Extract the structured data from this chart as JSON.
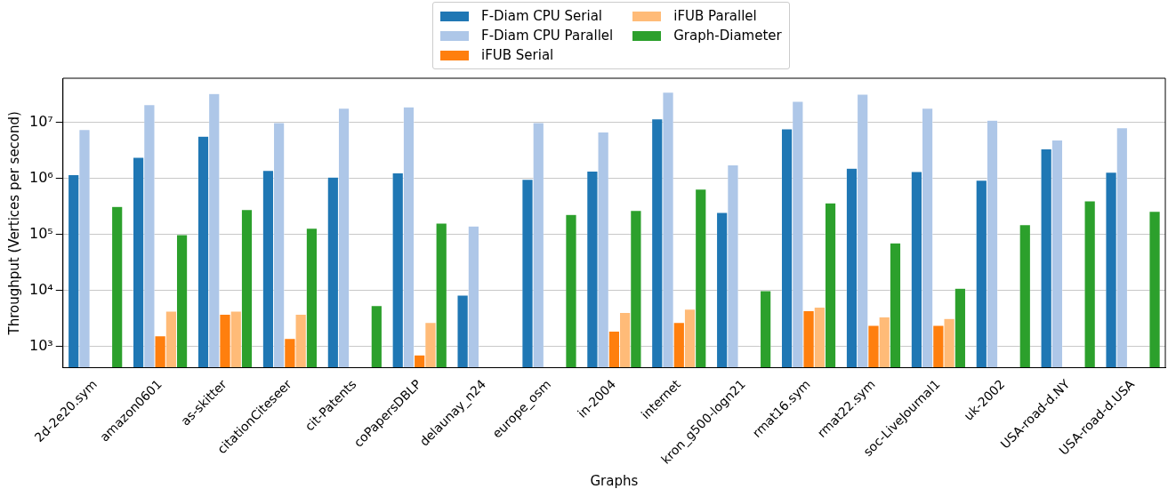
{
  "chart_data": {
    "type": "bar",
    "xlabel": "Graphs",
    "ylabel": "Throughput (Vertices per second)",
    "categories": [
      "2d-2e20.sym",
      "amazon0601",
      "as-skitter",
      "citationCiteseer",
      "cit-Patents",
      "coPapersDBLP",
      "delaunay_n24",
      "europe_osm",
      "in-2004",
      "internet",
      "kron_g500-logn21",
      "rmat16.sym",
      "rmat22.sym",
      "soc-LiveJournal1",
      "uk-2002",
      "USA-road-d.NY",
      "USA-road-d.USA"
    ],
    "series": [
      {
        "name": "F-Diam CPU Serial",
        "color": "#1f77b4",
        "values": [
          1180000,
          2400000,
          5700000,
          1400000,
          1060000,
          1270000,
          8300,
          970000,
          1360000,
          11700000,
          250000,
          7700000,
          1530000,
          1340000,
          940000,
          3400000,
          1300000
        ]
      },
      {
        "name": "F-Diam CPU Parallel",
        "color": "#aec7e8",
        "values": [
          7500000,
          21000000,
          33000000,
          10000000,
          18000000,
          19000000,
          142000,
          10000000,
          6800000,
          35000000,
          1760000,
          24000000,
          32000000,
          18000000,
          11000000,
          4900000,
          8100000
        ]
      },
      {
        "name": "iFUB Serial",
        "color": "#ff7f0e",
        "values": [
          null,
          1560,
          3800,
          1400,
          null,
          710,
          null,
          null,
          1900,
          2700,
          null,
          4400,
          2400,
          2400,
          null,
          null,
          null
        ]
      },
      {
        "name": "iFUB Parallel",
        "color": "#ffbb78",
        "values": [
          null,
          4300,
          4300,
          3800,
          null,
          2700,
          null,
          null,
          4100,
          4700,
          null,
          5100,
          3400,
          3200,
          null,
          null,
          null
        ]
      },
      {
        "name": "Graph-Diameter",
        "color": "#2ca02c",
        "values": [
          320000,
          100000,
          280000,
          130000,
          5400,
          160000,
          null,
          230000,
          270000,
          650000,
          10000,
          370000,
          71000,
          11000,
          150000,
          400000,
          260000
        ]
      }
    ],
    "log": true,
    "ylim": [
      423,
      62000000
    ],
    "yticks": [
      {
        "value": 1000,
        "label": "10³"
      },
      {
        "value": 10000,
        "label": "10⁴"
      },
      {
        "value": 100000,
        "label": "10⁵"
      },
      {
        "value": 1000000,
        "label": "10⁶"
      },
      {
        "value": 10000000,
        "label": "10⁷"
      }
    ],
    "grid": "y",
    "legend": "top"
  }
}
